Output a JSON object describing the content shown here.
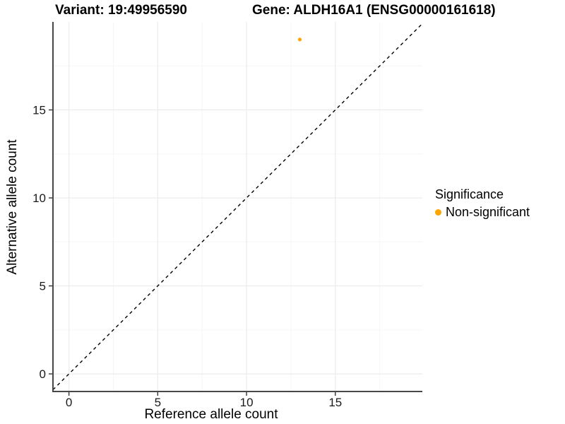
{
  "chart_data": {
    "type": "scatter",
    "title_left": "Variant: 19:49956590",
    "title_right": "Gene: ALDH16A1 (ENSG00000161618)",
    "xlabel": "Reference allele count",
    "ylabel": "Alternative allele count",
    "xlim": [
      -0.9,
      19.9
    ],
    "ylim": [
      -1,
      20
    ],
    "xticks": [
      0,
      5,
      10,
      15
    ],
    "yticks": [
      0,
      5,
      10,
      15
    ],
    "minor_grid_step": 2.5,
    "grid": "major+minor",
    "points": [
      {
        "x": 13,
        "y": 19,
        "series": "Non-significant"
      }
    ],
    "identity_line": {
      "style": "dashed",
      "color": "#000000",
      "from": -0.9,
      "to": 19.9
    },
    "legend": {
      "title": "Significance",
      "position": "right",
      "items": [
        {
          "label": "Non-significant",
          "color": "#FFA500",
          "marker": "circle"
        }
      ]
    },
    "colors": {
      "point": "#FFA500",
      "grid_major": "#EBEBEB",
      "grid_minor": "#F6F6F6",
      "axis_line": "#474747",
      "tick_mark": "#333333",
      "tick_text": "#1A1A1A",
      "background": "#FFFFFF"
    }
  }
}
